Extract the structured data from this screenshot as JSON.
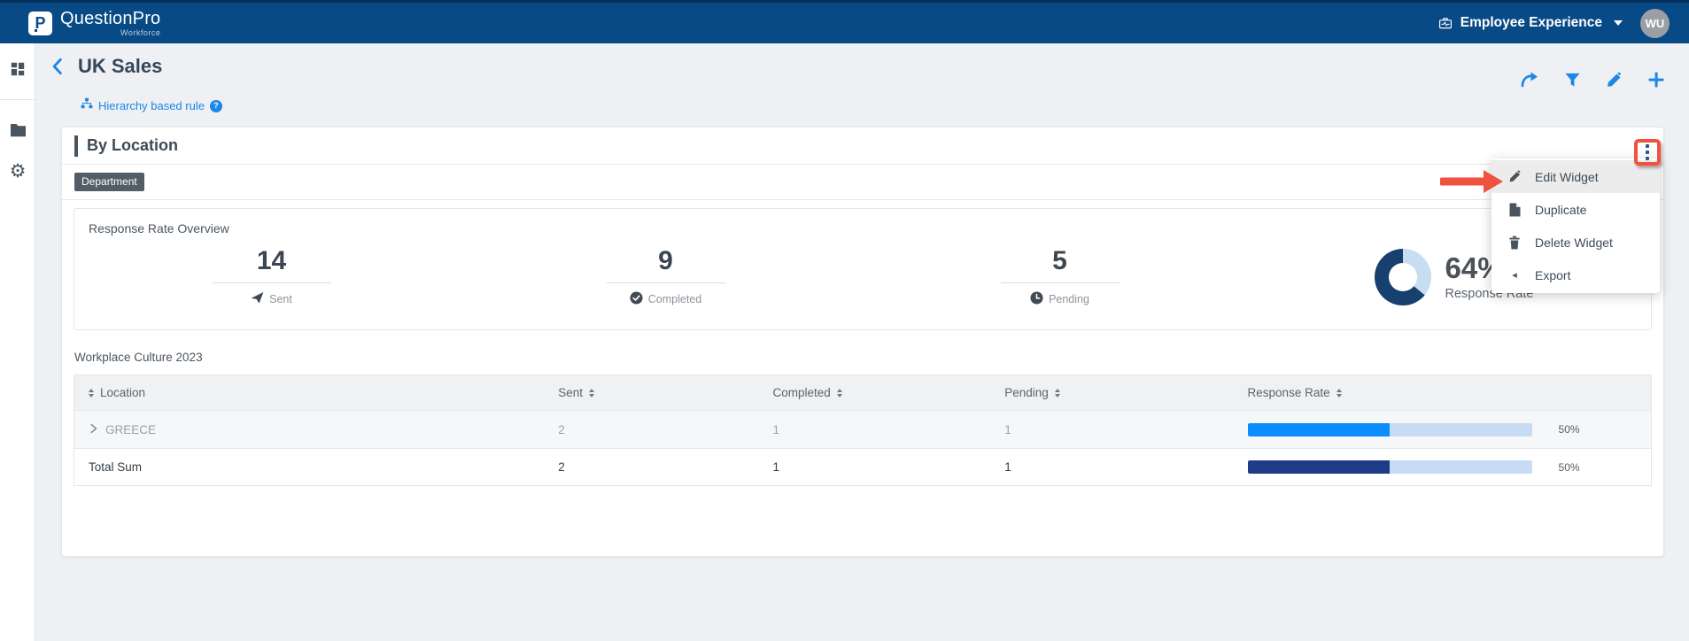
{
  "navbar": {
    "brand": "QuestionPro",
    "brand_sub": "Workforce",
    "brand_initial": "P",
    "product": "Employee Experience",
    "avatar_initials": "WU"
  },
  "header": {
    "title": "UK Sales",
    "rule_link": "Hierarchy based rule",
    "help_glyph": "?"
  },
  "widget": {
    "title": "By Location",
    "badge": "Department",
    "overview": {
      "title": "Response Rate Overview",
      "stats": [
        {
          "value": "14",
          "label": "Sent"
        },
        {
          "value": "9",
          "label": "Completed"
        },
        {
          "value": "5",
          "label": "Pending"
        }
      ],
      "response_rate": {
        "value": "64%",
        "percent": 64,
        "label": "Response Rate"
      }
    },
    "table": {
      "title": "Workplace Culture 2023",
      "columns": [
        "Location",
        "Sent",
        "Completed",
        "Pending",
        "Response Rate"
      ],
      "rows": [
        {
          "location": "GREECE",
          "sent": "2",
          "completed": "1",
          "pending": "1",
          "rate_label": "50%",
          "rate_percent": 50,
          "bar_color": "#0b8cff"
        }
      ],
      "total": {
        "location": "Total Sum",
        "sent": "2",
        "completed": "1",
        "pending": "1",
        "rate_label": "50%",
        "rate_percent": 50,
        "bar_color": "#1d3b86"
      }
    }
  },
  "menu": {
    "items": [
      {
        "label": "Edit Widget"
      },
      {
        "label": "Duplicate"
      },
      {
        "label": "Delete Widget"
      },
      {
        "label": "Export"
      }
    ]
  },
  "colors": {
    "navbar": "#084a86",
    "accent_blue": "#1b87e6",
    "annotation_red": "#ef5340",
    "donut_dark": "#17406f",
    "donut_light": "#c9ddf2",
    "bar_track": "#c6dbf4"
  }
}
